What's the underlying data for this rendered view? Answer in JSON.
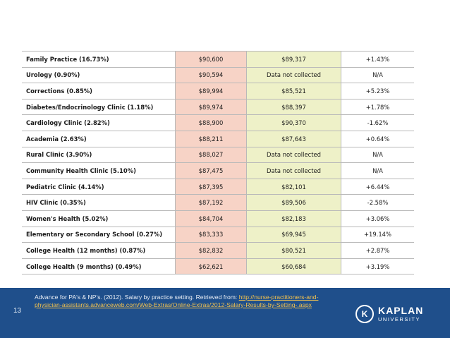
{
  "table": {
    "rows": [
      {
        "practice": "Family Practice (16.73%)",
        "salary_2012": "$90,600",
        "salary_2011": "$89,317",
        "change": "+1.43%"
      },
      {
        "practice": "Urology (0.90%)",
        "salary_2012": "$90,594",
        "salary_2011": "Data not collected",
        "change": "N/A"
      },
      {
        "practice": "Corrections (0.85%)",
        "salary_2012": "$89,994",
        "salary_2011": "$85,521",
        "change": "+5.23%"
      },
      {
        "practice": "Diabetes/Endocrinology Clinic (1.18%)",
        "salary_2012": "$89,974",
        "salary_2011": "$88,397",
        "change": "+1.78%"
      },
      {
        "practice": "Cardiology Clinic (2.82%)",
        "salary_2012": "$88,900",
        "salary_2011": "$90,370",
        "change": "-1.62%"
      },
      {
        "practice": "Academia (2.63%)",
        "salary_2012": "$88,211",
        "salary_2011": "$87,643",
        "change": "+0.64%"
      },
      {
        "practice": "Rural Clinic (3.90%)",
        "salary_2012": "$88,027",
        "salary_2011": "Data not collected",
        "change": "N/A"
      },
      {
        "practice": "Community Health Clinic (5.10%)",
        "salary_2012": "$87,475",
        "salary_2011": "Data not collected",
        "change": "N/A"
      },
      {
        "practice": "Pediatric Clinic (4.14%)",
        "salary_2012": "$87,395",
        "salary_2011": "$82,101",
        "change": "+6.44%"
      },
      {
        "practice": "HIV Clinic (0.35%)",
        "salary_2012": "$87,192",
        "salary_2011": "$89,506",
        "change": "-2.58%"
      },
      {
        "practice": "Women's Health (5.02%)",
        "salary_2012": "$84,704",
        "salary_2011": "$82,183",
        "change": "+3.06%"
      },
      {
        "practice": "Elementary or Secondary School (0.27%)",
        "salary_2012": "$83,333",
        "salary_2011": "$69,945",
        "change": "+19.14%"
      },
      {
        "practice": "College Health (12 months) (0.87%)",
        "salary_2012": "$82,832",
        "salary_2011": "$80,521",
        "change": "+2.87%"
      },
      {
        "practice": "College Health (9 months) (0.49%)",
        "salary_2012": "$62,621",
        "salary_2011": "$60,684",
        "change": "+3.19%"
      }
    ]
  },
  "footer": {
    "slide_number": "13",
    "citation_text": "Advance for PA's & NP's. (2012). Salary by practice setting. Retrieved from: ",
    "citation_link": "http://nurse-practitioners-and-physician-assistants.advanceweb.com/Web-Extras/Online-Extras/2012-Salary-Results-by-Setting-.aspx",
    "colors": {
      "bar": "#1f4f8b",
      "link": "#f2c14e"
    }
  },
  "logo": {
    "main": "KAPLAN",
    "sub": "UNIVERSITY",
    "icon": "kaplan-seal-icon"
  },
  "colors": {
    "col_2012": "#f7d3c6",
    "col_2011": "#eef1c8",
    "grid": "#b9b9b9"
  }
}
